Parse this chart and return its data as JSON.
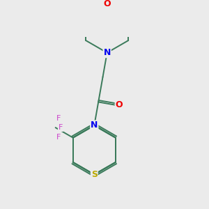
{
  "background_color": "#ebebeb",
  "bond_color": "#3a7a5a",
  "N_color": "#0000ee",
  "O_color": "#ee0000",
  "S_color": "#bbaa00",
  "F_color": "#cc44cc",
  "line_width": 1.4,
  "dbo": 0.05,
  "figsize": [
    3.0,
    3.0
  ],
  "dpi": 100,
  "xlim": [
    -2.2,
    2.8
  ],
  "ylim": [
    -2.5,
    2.5
  ]
}
